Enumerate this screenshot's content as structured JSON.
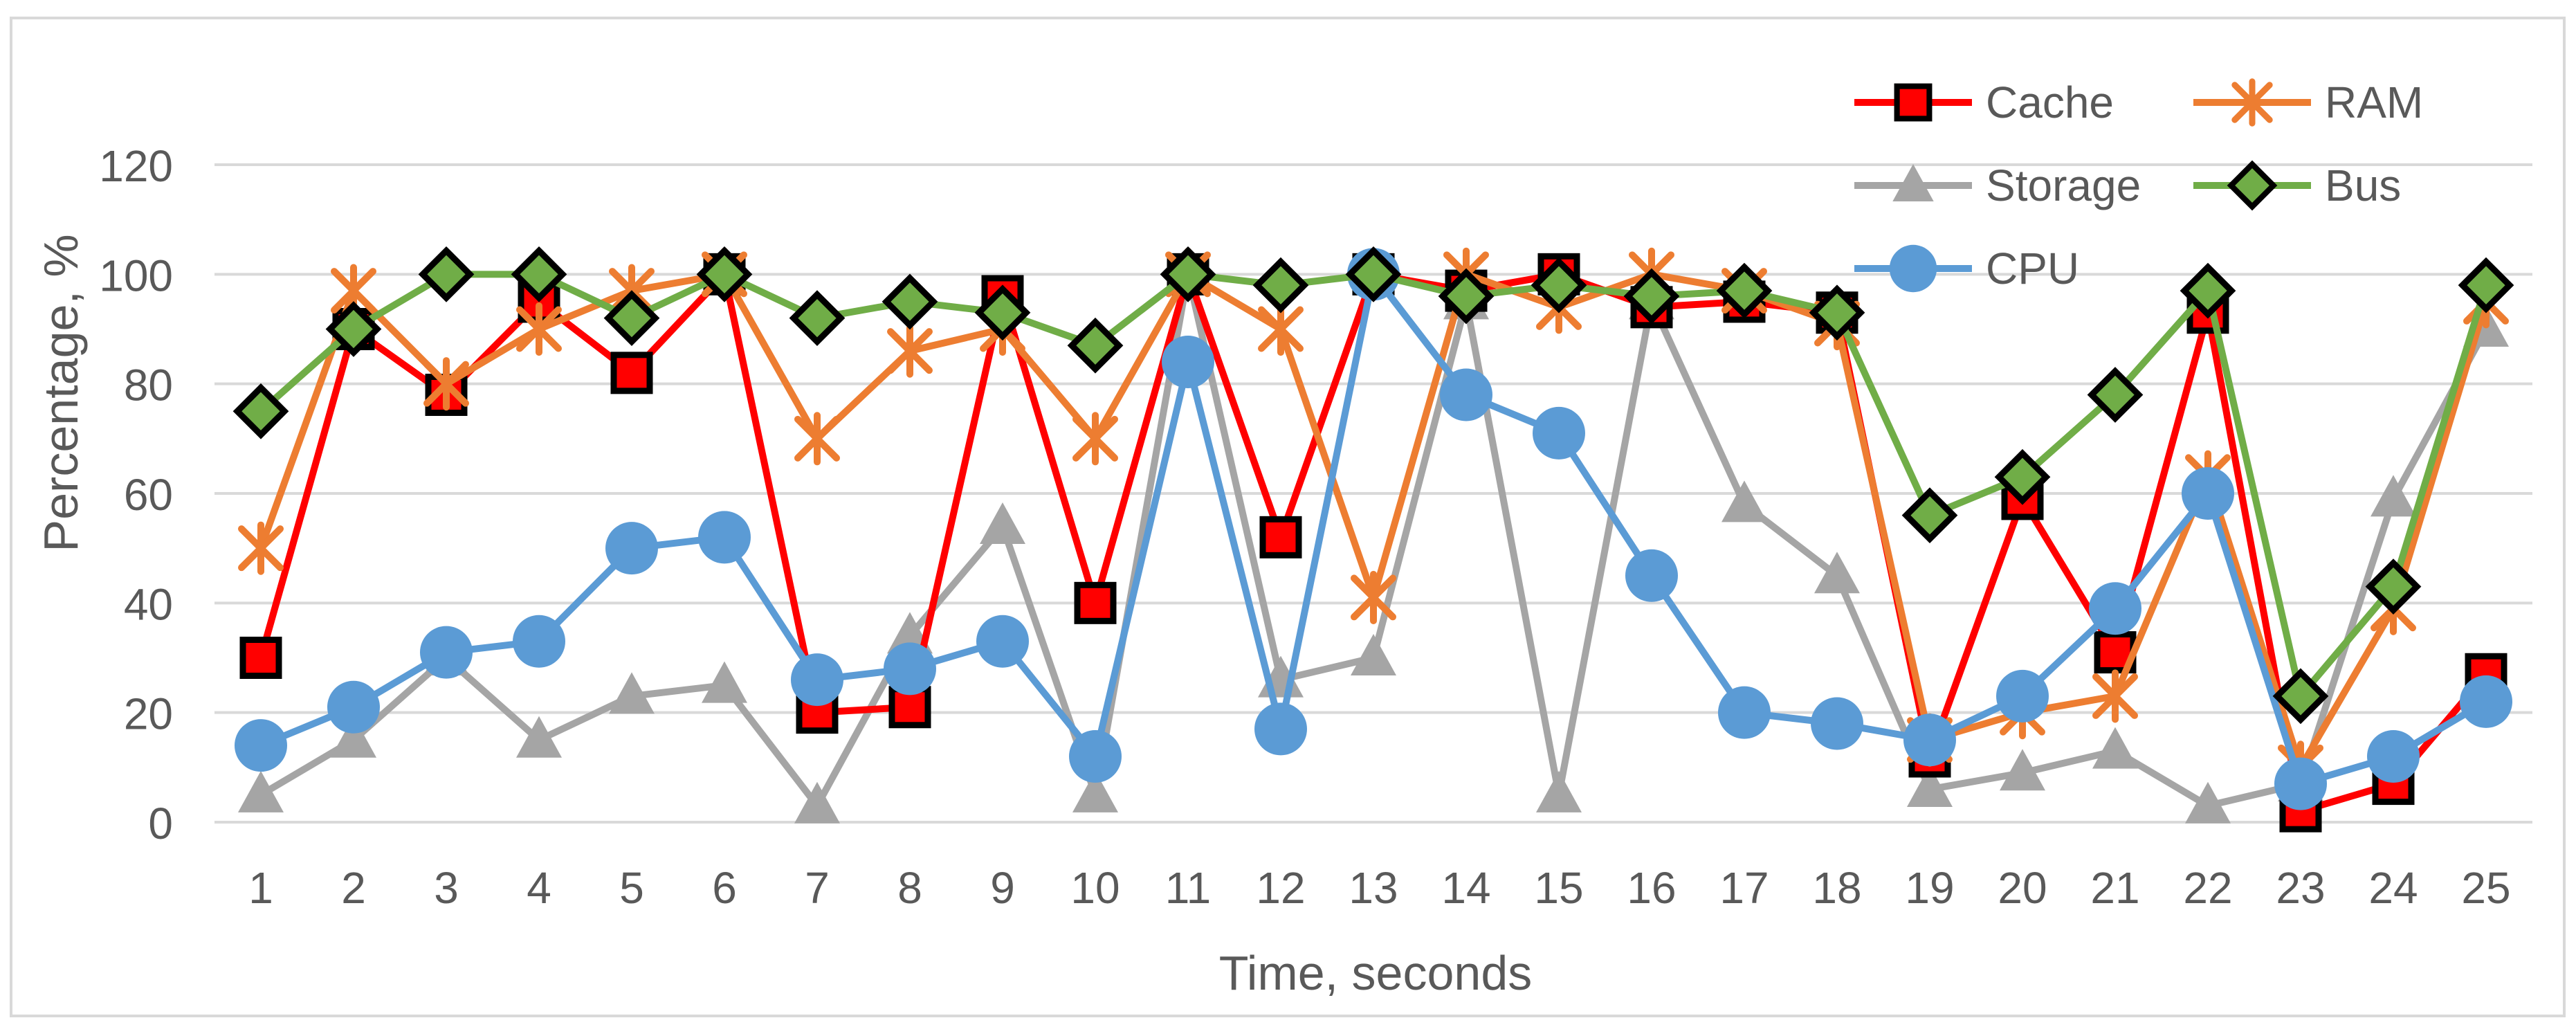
{
  "chart_data": {
    "type": "line",
    "title": "",
    "xlabel": "Time, seconds",
    "ylabel": "Percentage, %",
    "ylim": [
      0,
      120
    ],
    "yticks": [
      "0",
      "20",
      "40",
      "60",
      "80",
      "100",
      "120"
    ],
    "categories": [
      "1",
      "2",
      "3",
      "4",
      "5",
      "6",
      "7",
      "8",
      "9",
      "10",
      "11",
      "12",
      "13",
      "14",
      "15",
      "16",
      "17",
      "18",
      "19",
      "20",
      "21",
      "22",
      "23",
      "24",
      "25"
    ],
    "grid": true,
    "legend_position": "top-right",
    "series": [
      {
        "name": "Storage",
        "color": "#a5a5a5",
        "marker": "triangle",
        "values": [
          5,
          15,
          30,
          15,
          23,
          25,
          3,
          34,
          54,
          5,
          100,
          26,
          30,
          95,
          5,
          95,
          58,
          45,
          6,
          9,
          13,
          3,
          7,
          59,
          90
        ]
      },
      {
        "name": "Cache",
        "color": "#ff0000",
        "marker": "square",
        "values": [
          30,
          90,
          78,
          95,
          82,
          100,
          20,
          21,
          96,
          40,
          100,
          52,
          100,
          97,
          100,
          94,
          95,
          93,
          12,
          59,
          31,
          93,
          2,
          7,
          27
        ]
      },
      {
        "name": "RAM",
        "color": "#ed7d31",
        "marker": "asterisk",
        "values": [
          50,
          97,
          80,
          90,
          97,
          100,
          70,
          86,
          90,
          70,
          100,
          90,
          41,
          100,
          94,
          100,
          97,
          91,
          15,
          20,
          23,
          63,
          10,
          39,
          95
        ]
      },
      {
        "name": "CPU",
        "color": "#5b9bd5",
        "marker": "circle",
        "values": [
          14,
          21,
          31,
          33,
          50,
          52,
          26,
          28,
          33,
          12,
          84,
          17,
          100,
          78,
          71,
          45,
          20,
          18,
          15,
          23,
          39,
          60,
          7,
          12,
          22
        ]
      },
      {
        "name": "Bus",
        "color": "#70ad47",
        "marker": "diamond",
        "values": [
          75,
          90,
          100,
          100,
          92,
          100,
          92,
          95,
          93,
          87,
          100,
          98,
          100,
          96,
          98,
          96,
          97,
          93,
          56,
          63,
          78,
          97,
          23,
          43,
          98
        ]
      }
    ],
    "legend_order": [
      "Cache",
      "RAM",
      "Storage",
      "Bus",
      "CPU"
    ]
  }
}
